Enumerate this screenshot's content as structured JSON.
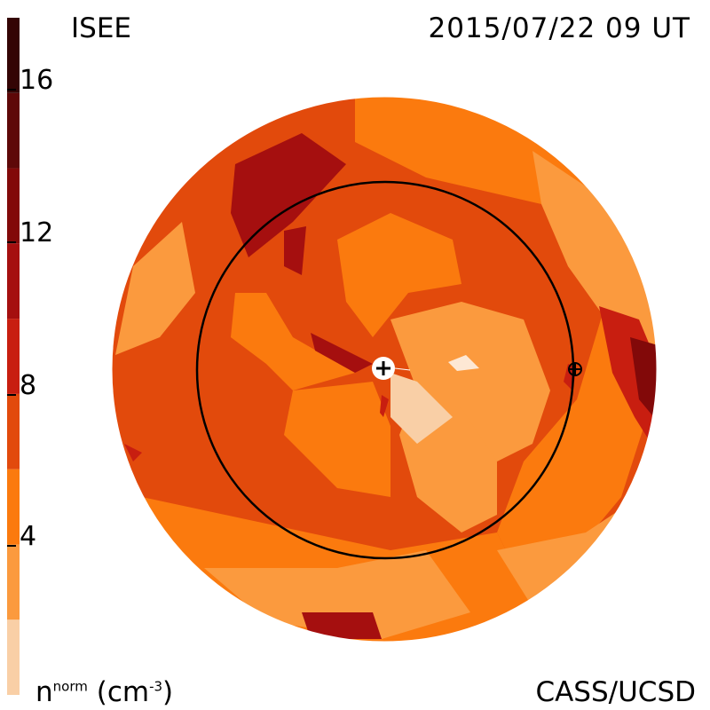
{
  "header": {
    "source": "ISEE",
    "datetime": "2015/07/22 09 UT"
  },
  "footer": {
    "credit": "CASS/UCSD",
    "unit_label_base": "n",
    "unit_label_sup": "norm",
    "unit_label_units": "(cm",
    "unit_label_exp": "-3",
    "unit_label_close": ")"
  },
  "colorbar": {
    "ticks": [
      {
        "label": "16",
        "value": 16
      },
      {
        "label": "12",
        "value": 12
      },
      {
        "label": "8",
        "value": 8
      },
      {
        "label": "4",
        "value": 4
      }
    ],
    "range": [
      0,
      18
    ],
    "bands": [
      {
        "from": 0,
        "to": 2,
        "color": "#f9cfa6"
      },
      {
        "from": 2,
        "to": 4,
        "color": "#fb9a3e"
      },
      {
        "from": 4,
        "to": 6,
        "color": "#fb7a0e"
      },
      {
        "from": 6,
        "to": 8,
        "color": "#e24a0c"
      },
      {
        "from": 8,
        "to": 10,
        "color": "#c81e10"
      },
      {
        "from": 10,
        "to": 12,
        "color": "#a50f0f"
      },
      {
        "from": 12,
        "to": 14,
        "color": "#820909"
      },
      {
        "from": 14,
        "to": 16,
        "color": "#5e0808"
      },
      {
        "from": 16,
        "to": 18,
        "color": "#340505"
      }
    ]
  },
  "map": {
    "center_symbol": "sun-marker",
    "earth_symbol": "earth-marker",
    "orbit": "earth-orbit-circle"
  }
}
